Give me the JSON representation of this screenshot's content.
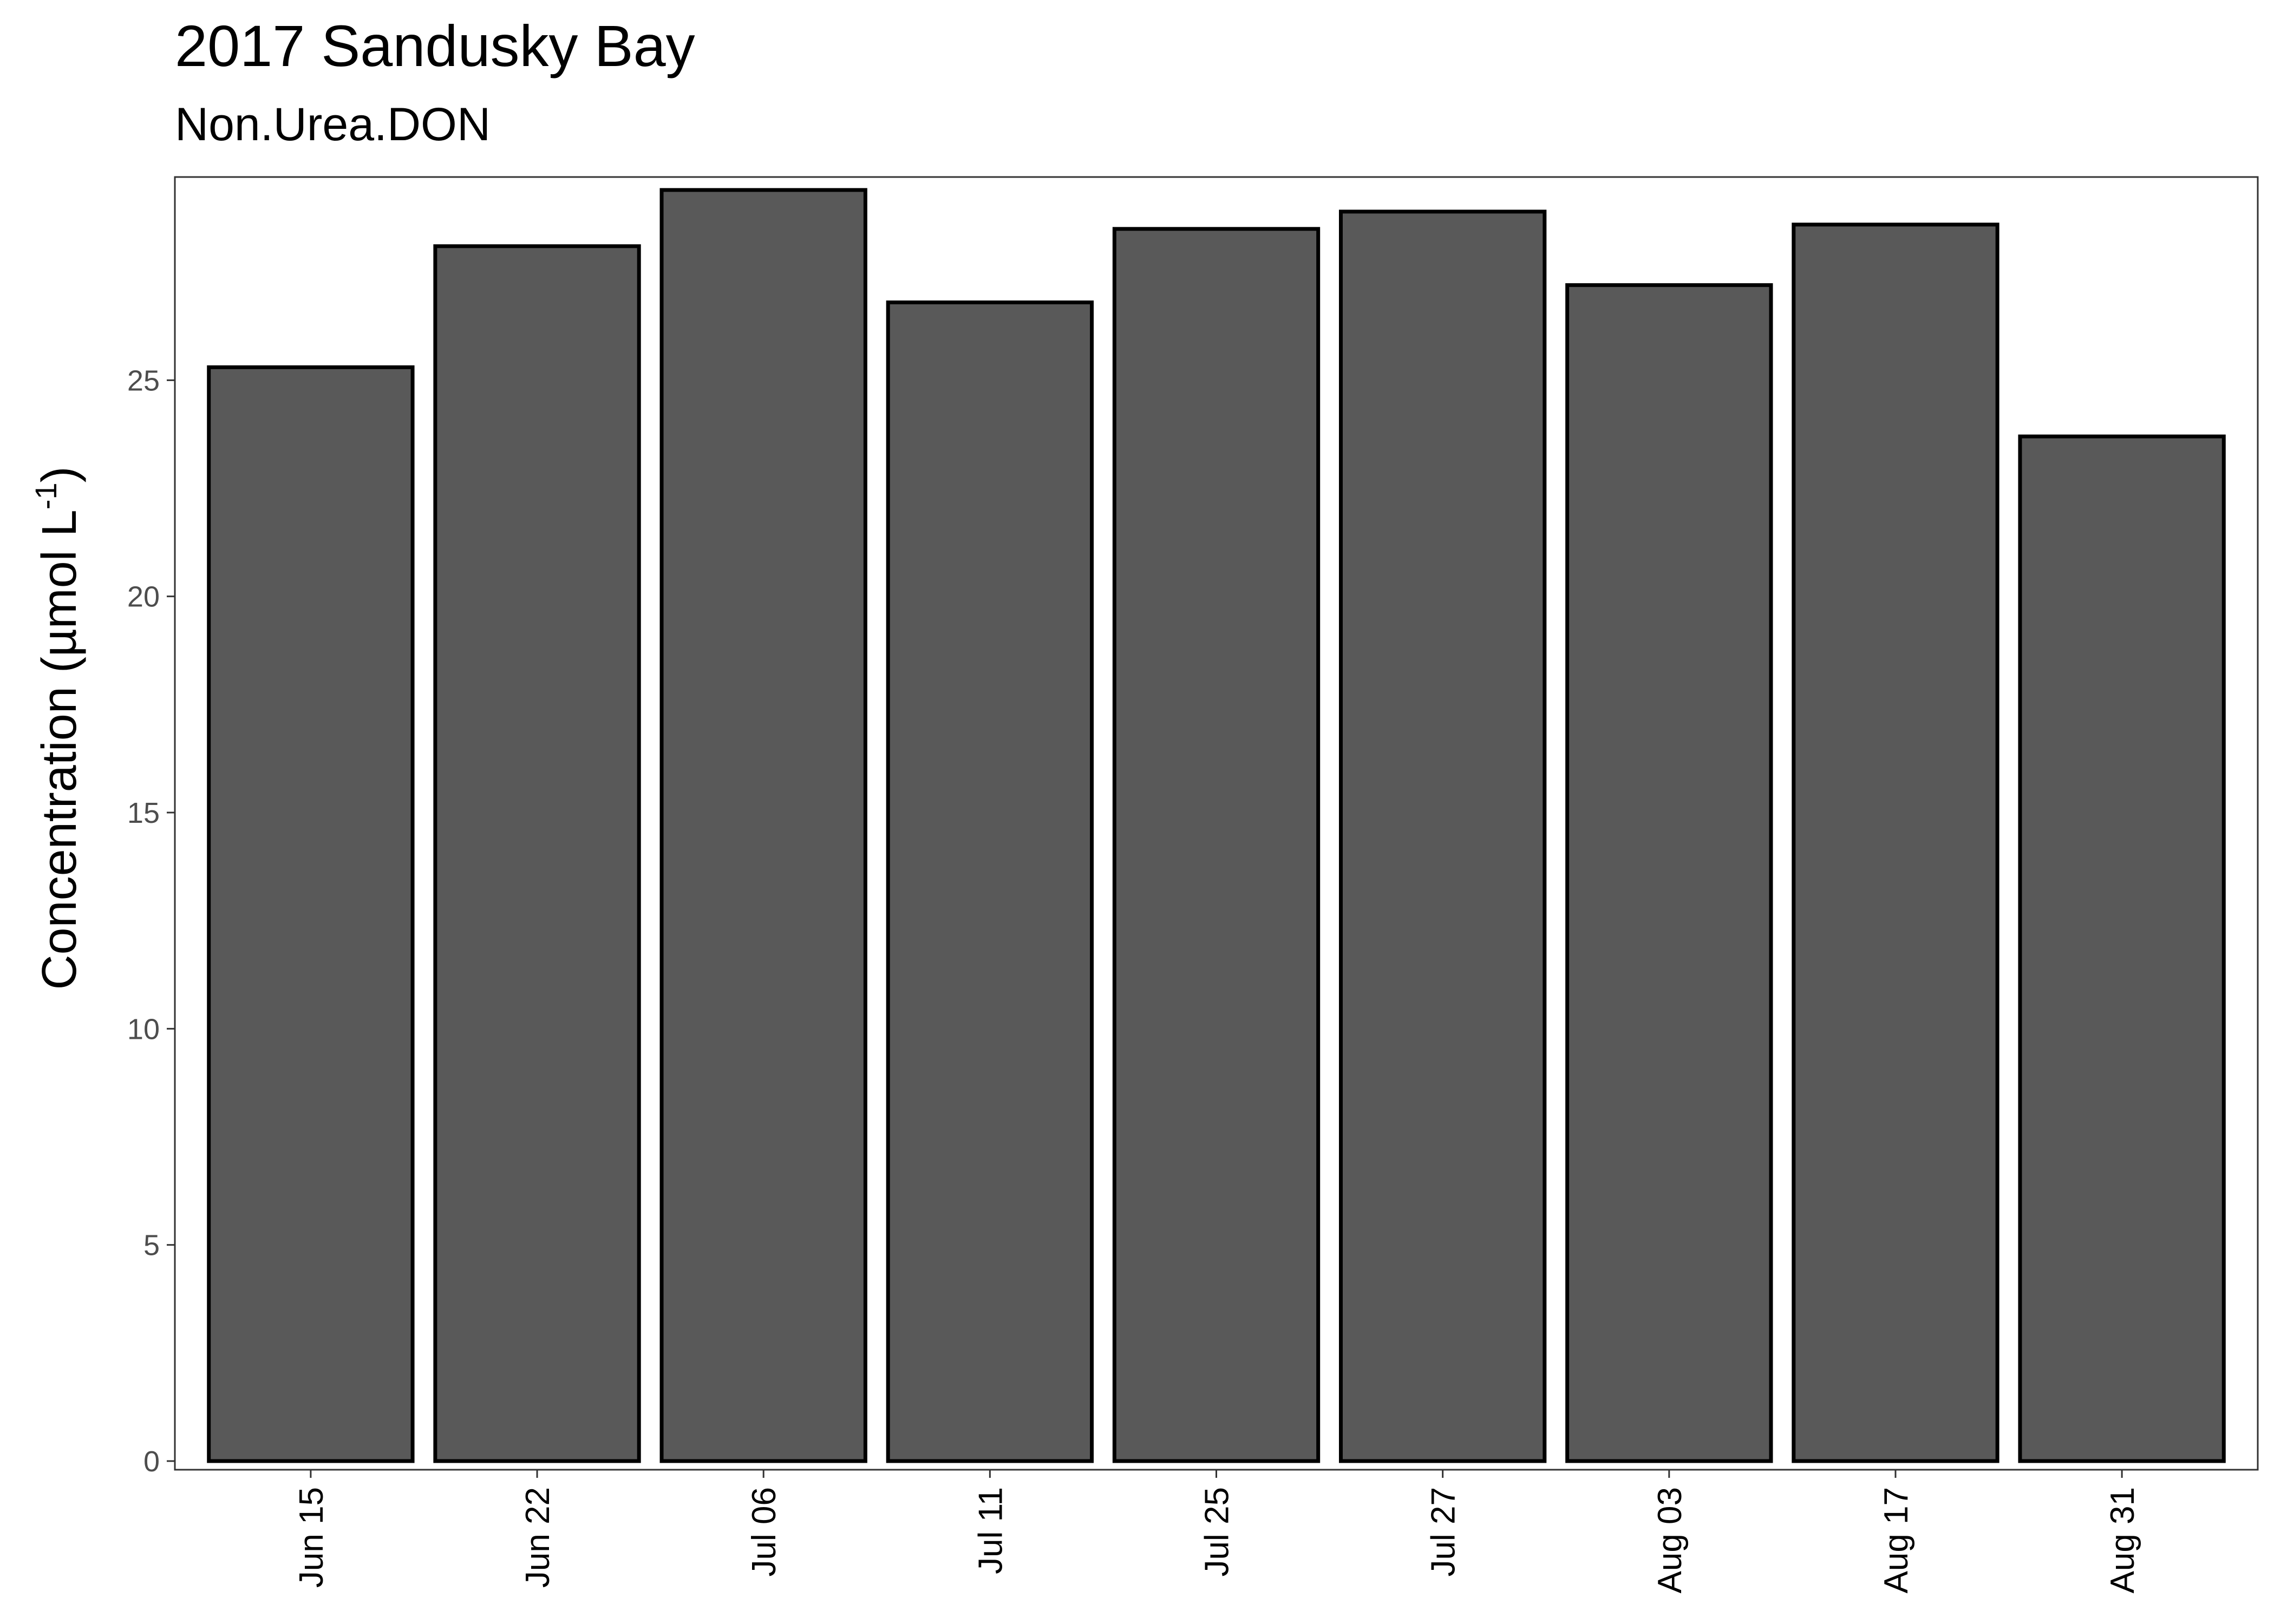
{
  "chart_data": {
    "type": "bar",
    "title": "2017 Sandusky Bay",
    "subtitle": "Non.Urea.DON",
    "ylabel_main": "Concentration (µmol L",
    "ylabel_sup": "-1",
    "ylabel_close": ")",
    "xlabel": "",
    "categories": [
      "Jun 15",
      "Jun 22",
      "Jul 06",
      "Jul 11",
      "Jul 25",
      "Jul 27",
      "Aug 03",
      "Aug 17",
      "Aug 31"
    ],
    "values": [
      25.3,
      28.1,
      29.4,
      26.8,
      28.5,
      28.9,
      27.2,
      28.6,
      23.7
    ],
    "ylim": [
      -0.2,
      29.7
    ],
    "yticks": [
      0,
      5,
      10,
      15,
      20,
      25
    ],
    "ytick_labels": [
      "0",
      "5",
      "10",
      "15",
      "20",
      "25"
    ],
    "grid": false,
    "legend": "none",
    "bar_fill": "#595959",
    "bar_stroke": "#000000"
  }
}
